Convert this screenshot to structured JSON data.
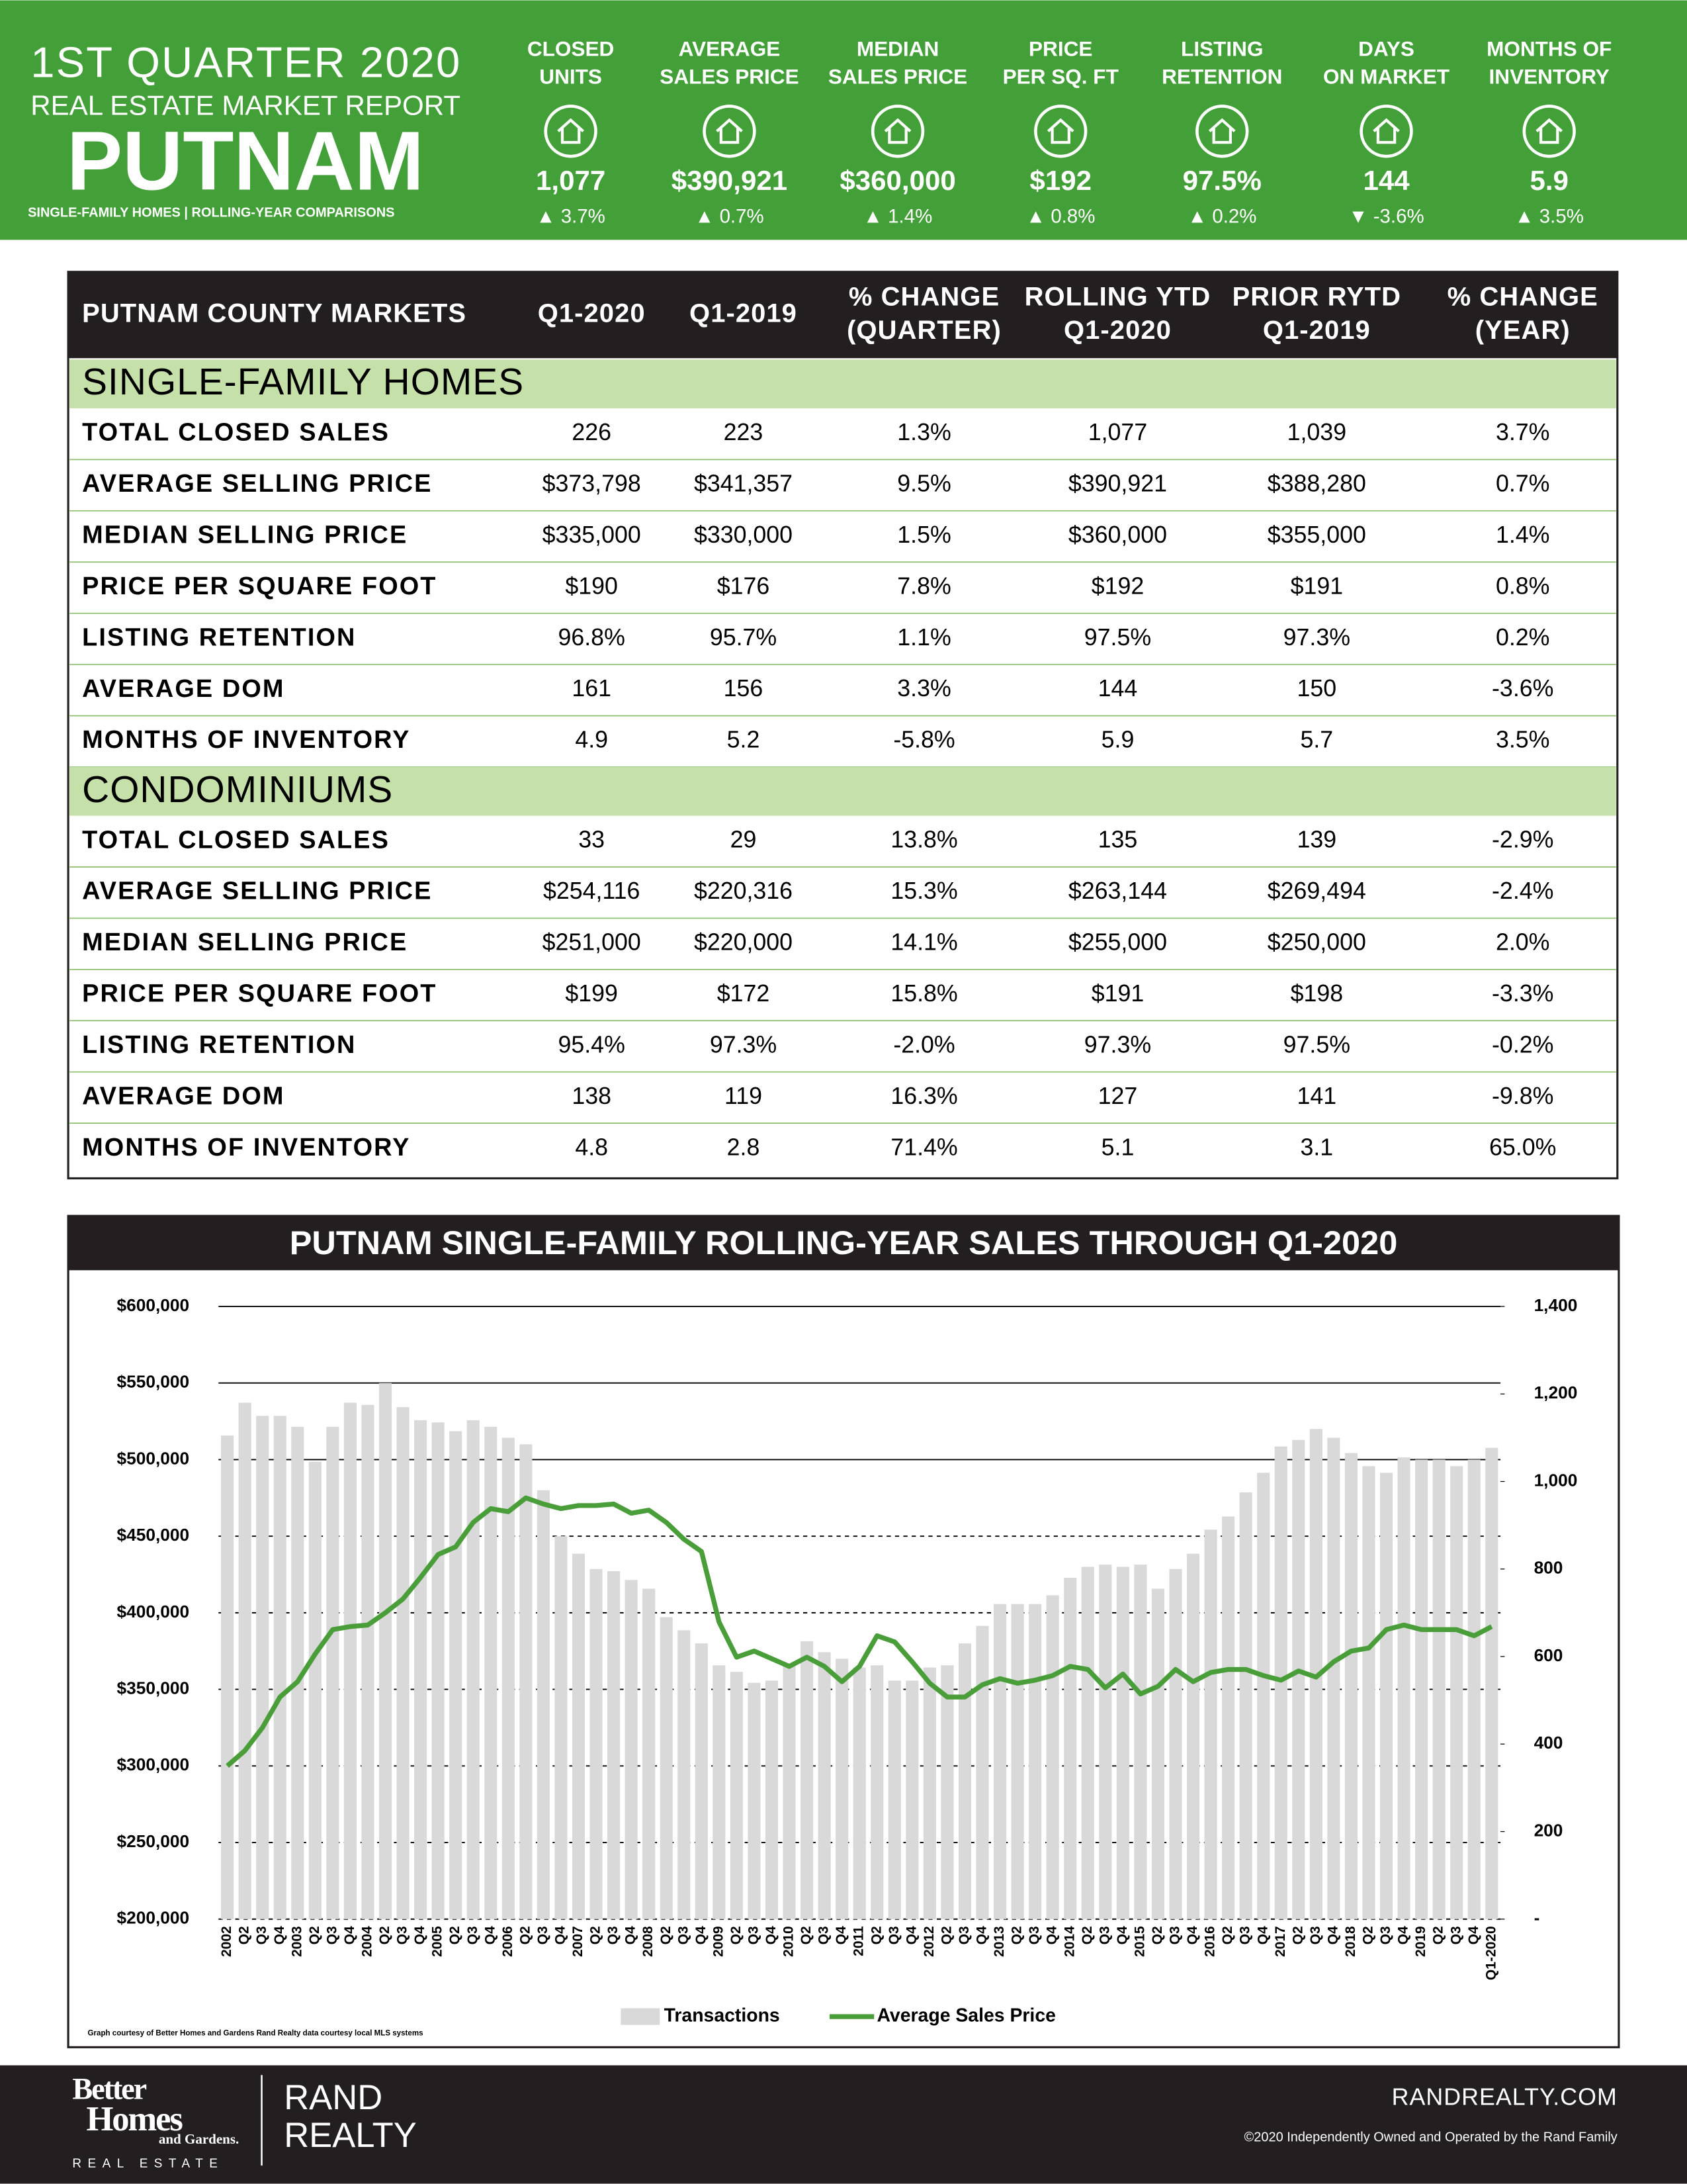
{
  "header": {
    "title": "1ST QUARTER 2020",
    "subtitle": "REAL ESTATE MARKET REPORT",
    "market": "PUTNAM",
    "note": "SINGLE-FAMILY HOMES | ROLLING-YEAR COMPARISONS"
  },
  "kpis": [
    {
      "label": [
        "CLOSED",
        "UNITS"
      ],
      "value": "1,077",
      "change": "▲ 3.7%"
    },
    {
      "label": [
        "AVERAGE",
        "SALES PRICE"
      ],
      "value": "$390,921",
      "change": "▲ 0.7%"
    },
    {
      "label": [
        "MEDIAN",
        "SALES PRICE"
      ],
      "value": "$360,000",
      "change": "▲ 1.4%"
    },
    {
      "label": [
        "PRICE",
        "PER SQ. FT"
      ],
      "value": "$192",
      "change": "▲ 0.8%"
    },
    {
      "label": [
        "LISTING",
        "RETENTION"
      ],
      "value": "97.5%",
      "change": "▲ 0.2%"
    },
    {
      "label": [
        "DAYS",
        "ON MARKET"
      ],
      "value": "144",
      "change": "▼ -3.6%"
    },
    {
      "label": [
        "MONTHS OF",
        "INVENTORY"
      ],
      "value": "5.9",
      "change": "▲ 3.5%"
    }
  ],
  "table": {
    "columns": [
      [
        "PUTNAM COUNTY MARKETS"
      ],
      [
        "Q1-2020"
      ],
      [
        "Q1-2019"
      ],
      [
        "% CHANGE",
        "(QUARTER)"
      ],
      [
        "ROLLING YTD",
        "Q1-2020"
      ],
      [
        "PRIOR RYTD",
        "Q1-2019"
      ],
      [
        "% CHANGE",
        "(YEAR)"
      ]
    ],
    "sections": [
      {
        "title": "SINGLE-FAMILY HOMES",
        "rows": [
          [
            "TOTAL CLOSED SALES",
            "226",
            "223",
            "1.3%",
            "1,077",
            "1,039",
            "3.7%"
          ],
          [
            "AVERAGE SELLING PRICE",
            "$373,798",
            "$341,357",
            "9.5%",
            "$390,921",
            "$388,280",
            "0.7%"
          ],
          [
            "MEDIAN SELLING PRICE",
            "$335,000",
            "$330,000",
            "1.5%",
            "$360,000",
            "$355,000",
            "1.4%"
          ],
          [
            "PRICE PER SQUARE FOOT",
            "$190",
            "$176",
            "7.8%",
            "$192",
            "$191",
            "0.8%"
          ],
          [
            "LISTING RETENTION",
            "96.8%",
            "95.7%",
            "1.1%",
            "97.5%",
            "97.3%",
            "0.2%"
          ],
          [
            "AVERAGE DOM",
            "161",
            "156",
            "3.3%",
            "144",
            "150",
            "-3.6%"
          ],
          [
            "MONTHS OF INVENTORY",
            "4.9",
            "5.2",
            "-5.8%",
            "5.9",
            "5.7",
            "3.5%"
          ]
        ]
      },
      {
        "title": "CONDOMINIUMS",
        "rows": [
          [
            "TOTAL CLOSED SALES",
            "33",
            "29",
            "13.8%",
            "135",
            "139",
            "-2.9%"
          ],
          [
            "AVERAGE SELLING PRICE",
            "$254,116",
            "$220,316",
            "15.3%",
            "$263,144",
            "$269,494",
            "-2.4%"
          ],
          [
            "MEDIAN SELLING PRICE",
            "$251,000",
            "$220,000",
            "14.1%",
            "$255,000",
            "$250,000",
            "2.0%"
          ],
          [
            "PRICE PER SQUARE FOOT",
            "$199",
            "$172",
            "15.8%",
            "$191",
            "$198",
            "-3.3%"
          ],
          [
            "LISTING RETENTION",
            "95.4%",
            "97.3%",
            "-2.0%",
            "97.3%",
            "97.5%",
            "-0.2%"
          ],
          [
            "AVERAGE DOM",
            "138",
            "119",
            "16.3%",
            "127",
            "141",
            "-9.8%"
          ],
          [
            "MONTHS OF INVENTORY",
            "4.8",
            "2.8",
            "71.4%",
            "5.1",
            "3.1",
            "65.0%"
          ]
        ]
      }
    ]
  },
  "chart_data": {
    "type": "combo",
    "title": "PUTNAM SINGLE-FAMILY ROLLING-YEAR SALES THROUGH Q1-2020",
    "source": "Graph courtesy of Better Homes and Gardens Rand Realty data courtesy local MLS systems",
    "categories": [
      "2002",
      "Q2",
      "Q3",
      "Q4",
      "2003",
      "Q2",
      "Q3",
      "Q4",
      "2004",
      "Q2",
      "Q3",
      "Q4",
      "2005",
      "Q2",
      "Q3",
      "Q4",
      "2006",
      "Q2",
      "Q3",
      "Q4",
      "2007",
      "Q2",
      "Q3",
      "Q4",
      "2008",
      "Q2",
      "Q3",
      "Q4",
      "2009",
      "Q2",
      "Q3",
      "Q4",
      "2010",
      "Q2",
      "Q3",
      "Q4",
      "2011",
      "Q2",
      "Q3",
      "Q4",
      "2012",
      "Q2",
      "Q3",
      "Q4",
      "2013",
      "Q2",
      "Q3",
      "Q4",
      "2014",
      "Q2",
      "Q3",
      "Q4",
      "2015",
      "Q2",
      "Q3",
      "Q4",
      "2016",
      "Q2",
      "Q3",
      "Q4",
      "2017",
      "Q2",
      "Q3",
      "Q4",
      "2018",
      "Q2",
      "Q3",
      "Q4",
      "2019",
      "Q2",
      "Q3",
      "Q4",
      "Q1-2020"
    ],
    "series": [
      {
        "name": "Transactions",
        "type": "bar",
        "axis": "y2",
        "color": "#d9d9d9",
        "values": [
          1105,
          1180,
          1150,
          1150,
          1125,
          1045,
          1125,
          1180,
          1175,
          1225,
          1170,
          1140,
          1135,
          1115,
          1140,
          1125,
          1100,
          1085,
          980,
          875,
          835,
          800,
          795,
          775,
          755,
          690,
          660,
          630,
          580,
          565,
          540,
          545,
          580,
          635,
          610,
          595,
          575,
          580,
          545,
          545,
          575,
          580,
          630,
          670,
          720,
          720,
          720,
          740,
          780,
          805,
          810,
          805,
          810,
          755,
          800,
          835,
          890,
          920,
          975,
          1020,
          1080,
          1095,
          1120,
          1100,
          1065,
          1035,
          1020,
          1055,
          1050,
          1050,
          1035,
          1050,
          1077
        ]
      },
      {
        "name": "Average Sales Price",
        "type": "line",
        "color": "#4a9e3a",
        "values": [
          300000,
          310000,
          325000,
          345000,
          355000,
          373000,
          389000,
          391000,
          392000,
          400000,
          409000,
          423000,
          438000,
          443000,
          459000,
          468000,
          466000,
          475000,
          471000,
          468000,
          470000,
          470000,
          471000,
          465000,
          467000,
          459000,
          448000,
          440000,
          394000,
          371000,
          375000,
          370000,
          365000,
          371000,
          365000,
          355000,
          365000,
          385000,
          381000,
          368000,
          354000,
          345000,
          345000,
          353000,
          357000,
          354000,
          356000,
          359000,
          365000,
          363000,
          351000,
          360000,
          347000,
          352000,
          363000,
          355000,
          361000,
          363000,
          363000,
          359000,
          356000,
          362000,
          358000,
          368000,
          375000,
          377000,
          389000,
          392000,
          389000,
          389000,
          389000,
          385000,
          391000
        ]
      }
    ],
    "ylim": [
      200000,
      600000
    ],
    "yticks": [
      {
        "value": 200000,
        "label": "$200,000"
      },
      {
        "value": 250000,
        "label": "$250,000"
      },
      {
        "value": 300000,
        "label": "$300,000"
      },
      {
        "value": 350000,
        "label": "$350,000"
      },
      {
        "value": 400000,
        "label": "$400,000"
      },
      {
        "value": 450000,
        "label": "$450,000"
      },
      {
        "value": 500000,
        "label": "$500,000"
      },
      {
        "value": 550000,
        "label": "$550,000"
      },
      {
        "value": 600000,
        "label": "$600,000"
      }
    ],
    "y2lim": [
      0,
      1400
    ],
    "y2ticks": [
      {
        "value": 0,
        "label": "-"
      },
      200,
      400,
      600,
      800,
      {
        "value": 1000,
        "label": "1,000"
      },
      {
        "value": 1200,
        "label": "1,200"
      },
      {
        "value": 1400,
        "label": "1,400"
      }
    ],
    "grid": true,
    "legend": "bottom"
  },
  "footer": {
    "logo": [
      "Better",
      "Homes",
      "and Gardens."
    ],
    "logo_sub": "REAL ESTATE",
    "brand": [
      "RAND",
      "REALTY"
    ],
    "website": "RANDREALTY.COM",
    "copyright": "©2020 Independently Owned and Operated by the Rand Family"
  }
}
